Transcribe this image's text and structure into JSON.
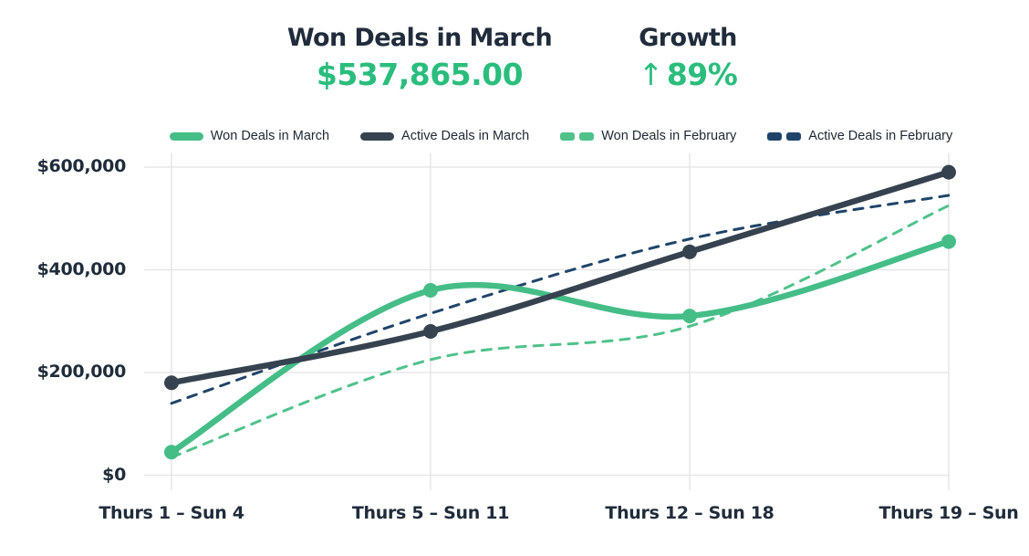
{
  "header": {
    "left": {
      "title": "Won Deals in March",
      "value": "$537,865.00"
    },
    "right": {
      "title": "Growth",
      "arrow": "↑",
      "value": "89%"
    }
  },
  "colors": {
    "accent_green": "#2abd7c",
    "text_navy": "#202c3b",
    "grid": "#e7e7e9",
    "won_march_line": "#45bd87",
    "active_march_line": "#36424f",
    "won_feb_line": "#4fc28a",
    "active_feb_line": "#1f4469"
  },
  "chart_data": {
    "type": "line",
    "title": "Won Deals in March",
    "categories": [
      "Thurs 1 – Sun 4",
      "Thurs 5 – Sun 11",
      "Thurs 12 – Sun 18",
      "Thurs 19 – Sun"
    ],
    "series": [
      {
        "name": "Won Deals in March",
        "values": [
          45000,
          360000,
          310000,
          455000
        ],
        "color": "#45bd87",
        "dash": false,
        "dots": true
      },
      {
        "name": "Active Deals in March",
        "values": [
          180000,
          280000,
          435000,
          590000
        ],
        "color": "#36424f",
        "dash": false,
        "dots": true
      },
      {
        "name": "Won Deals in February",
        "values": [
          35000,
          225000,
          290000,
          525000
        ],
        "color": "#4fc28a",
        "dash": true,
        "dots": false
      },
      {
        "name": "Active Deals in February",
        "values": [
          140000,
          315000,
          460000,
          545000
        ],
        "color": "#1f4469",
        "dash": true,
        "dots": false
      }
    ],
    "y_ticks": [
      {
        "value": 0,
        "label": "$0"
      },
      {
        "value": 200000,
        "label": "$200,000"
      },
      {
        "value": 400000,
        "label": "$400,000"
      },
      {
        "value": 600000,
        "label": "$600,000"
      }
    ],
    "ylim": [
      0,
      600000
    ],
    "xlabel": "",
    "ylabel": "",
    "grid": true,
    "legend_position": "top"
  }
}
